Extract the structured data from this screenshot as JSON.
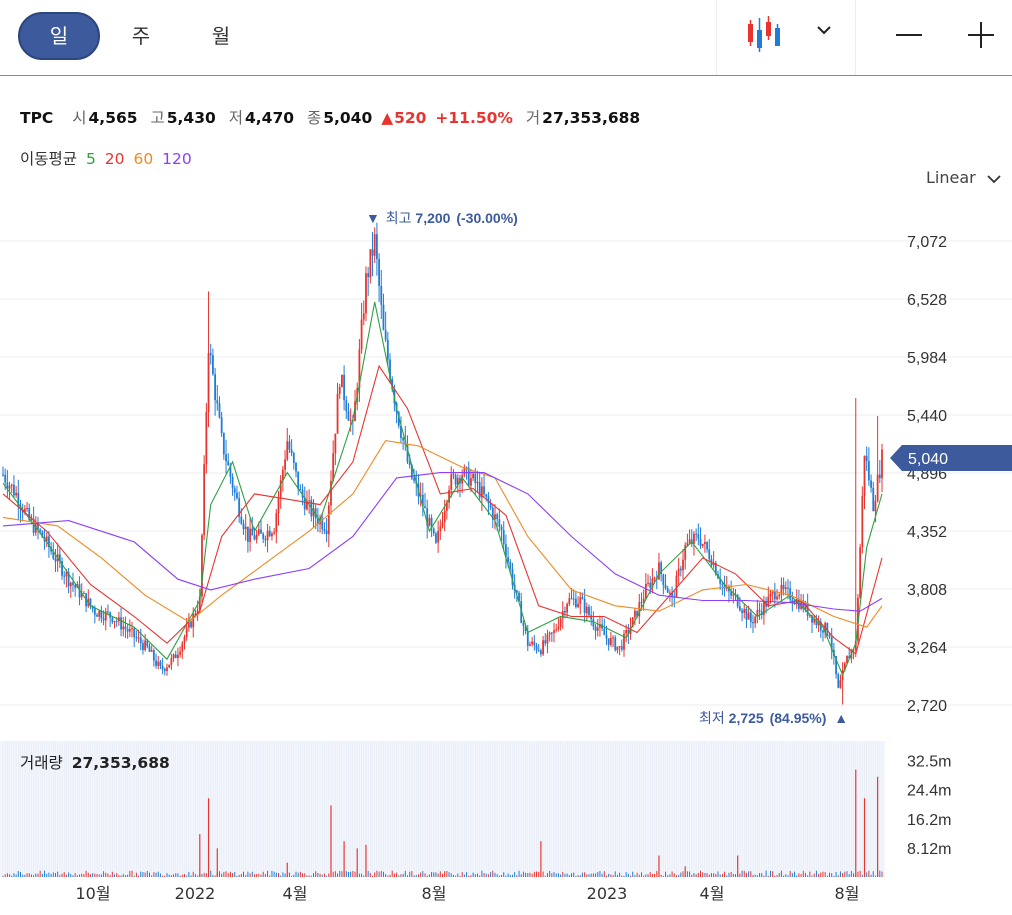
{
  "toolbar": {
    "periods": [
      {
        "label": "일",
        "active": true
      },
      {
        "label": "주",
        "active": false
      },
      {
        "label": "월",
        "active": false
      }
    ],
    "chart_type_icon": "candlestick-icon",
    "dropdown_icon": "chevron-down-icon",
    "zoom_out_icon": "minus-icon",
    "zoom_in_icon": "plus-icon"
  },
  "quote": {
    "symbol": "TPC",
    "open_label": "시",
    "open": "4,565",
    "high_label": "고",
    "high": "5,430",
    "low_label": "저",
    "low": "4,470",
    "close_label": "종",
    "close": "5,040",
    "change_mark": "▲",
    "change": "520",
    "change_pct": "+11.50%",
    "volume_label": "거",
    "volume": "27,353,688"
  },
  "moving_average": {
    "label": "이동평균",
    "periods": [
      {
        "label": "5",
        "color": "#2ea043"
      },
      {
        "label": "20",
        "color": "#e8342f"
      },
      {
        "label": "60",
        "color": "#f08a24"
      },
      {
        "label": "120",
        "color": "#8a3ffc"
      }
    ]
  },
  "scale": {
    "label": "Linear",
    "icon": "chevron-down-icon"
  },
  "annotations": {
    "high": {
      "mark": "▼",
      "label": "최고",
      "value": "7,200",
      "pct": "(-30.00%)"
    },
    "low": {
      "label": "최저",
      "value": "2,725",
      "pct": "(84.95%)",
      "mark": "▲"
    }
  },
  "current_price_tag": "5,040",
  "volume_panel": {
    "label": "거래량",
    "value": "27,353,688"
  },
  "colors": {
    "up": "#e8342f",
    "down": "#1f7dd6",
    "accent": "#3d5a9c",
    "annotation": "#3d5a9c"
  },
  "chart_data": {
    "type": "candlestick",
    "y_ticks": [
      "7,072",
      "6,528",
      "5,984",
      "5,440",
      "4,896",
      "4,352",
      "3,808",
      "3,264",
      "2,720"
    ],
    "y_tick_values": [
      7072,
      6528,
      5984,
      5440,
      4896,
      4352,
      3808,
      3264,
      2720
    ],
    "ylim": [
      2600,
      7250
    ],
    "x_ticks": [
      "10월",
      "2022",
      "4월",
      "8월",
      "2023",
      "4월",
      "8월"
    ],
    "volume_ticks": [
      "32.5m",
      "24.4m",
      "16.2m",
      "8.12m"
    ],
    "volume_tick_values": [
      32.5,
      24.4,
      16.2,
      8.12
    ],
    "volume_ylim": [
      0,
      38
    ],
    "price_path": [
      [
        0,
        4880
      ],
      [
        6,
        4700
      ],
      [
        12,
        4450
      ],
      [
        18,
        4300
      ],
      [
        24,
        4100
      ],
      [
        30,
        3900
      ],
      [
        36,
        3750
      ],
      [
        42,
        3600
      ],
      [
        50,
        3550
      ],
      [
        58,
        3400
      ],
      [
        66,
        3250
      ],
      [
        72,
        3050
      ],
      [
        78,
        3150
      ],
      [
        84,
        3400
      ],
      [
        90,
        3700
      ],
      [
        94,
        6100
      ],
      [
        100,
        5200
      ],
      [
        106,
        4700
      ],
      [
        112,
        4300
      ],
      [
        118,
        4300
      ],
      [
        124,
        4400
      ],
      [
        130,
        5200
      ],
      [
        136,
        4700
      ],
      [
        142,
        4500
      ],
      [
        148,
        4400
      ],
      [
        154,
        5800
      ],
      [
        160,
        5300
      ],
      [
        166,
        6700
      ],
      [
        170,
        7072
      ],
      [
        174,
        6200
      ],
      [
        180,
        5500
      ],
      [
        186,
        4900
      ],
      [
        192,
        4600
      ],
      [
        198,
        4200
      ],
      [
        204,
        4800
      ],
      [
        210,
        4900
      ],
      [
        216,
        4800
      ],
      [
        222,
        4600
      ],
      [
        228,
        4350
      ],
      [
        234,
        3800
      ],
      [
        240,
        3300
      ],
      [
        246,
        3250
      ],
      [
        252,
        3400
      ],
      [
        258,
        3700
      ],
      [
        264,
        3700
      ],
      [
        270,
        3500
      ],
      [
        276,
        3350
      ],
      [
        282,
        3250
      ],
      [
        288,
        3500
      ],
      [
        294,
        3800
      ],
      [
        300,
        4000
      ],
      [
        306,
        3700
      ],
      [
        312,
        4200
      ],
      [
        318,
        4300
      ],
      [
        324,
        4100
      ],
      [
        330,
        3800
      ],
      [
        336,
        3700
      ],
      [
        342,
        3500
      ],
      [
        348,
        3650
      ],
      [
        354,
        3800
      ],
      [
        360,
        3750
      ],
      [
        366,
        3650
      ],
      [
        372,
        3500
      ],
      [
        378,
        3400
      ],
      [
        382,
        2850
      ],
      [
        386,
        3150
      ],
      [
        390,
        3300
      ],
      [
        394,
        5100
      ],
      [
        398,
        4600
      ],
      [
        402,
        5040
      ]
    ],
    "ma5": [
      [
        0,
        4800
      ],
      [
        20,
        4250
      ],
      [
        40,
        3650
      ],
      [
        60,
        3450
      ],
      [
        75,
        3150
      ],
      [
        90,
        3700
      ],
      [
        95,
        4600
      ],
      [
        105,
        5000
      ],
      [
        115,
        4350
      ],
      [
        130,
        4900
      ],
      [
        145,
        4450
      ],
      [
        160,
        5400
      ],
      [
        170,
        6500
      ],
      [
        180,
        5500
      ],
      [
        195,
        4350
      ],
      [
        210,
        4850
      ],
      [
        225,
        4450
      ],
      [
        240,
        3400
      ],
      [
        255,
        3550
      ],
      [
        270,
        3500
      ],
      [
        285,
        3350
      ],
      [
        300,
        3950
      ],
      [
        315,
        4250
      ],
      [
        330,
        3850
      ],
      [
        345,
        3550
      ],
      [
        360,
        3750
      ],
      [
        375,
        3450
      ],
      [
        384,
        3000
      ],
      [
        390,
        3300
      ],
      [
        395,
        4200
      ],
      [
        402,
        4700
      ]
    ],
    "ma20": [
      [
        0,
        4700
      ],
      [
        20,
        4350
      ],
      [
        40,
        3850
      ],
      [
        60,
        3550
      ],
      [
        75,
        3300
      ],
      [
        90,
        3600
      ],
      [
        100,
        4300
      ],
      [
        115,
        4700
      ],
      [
        130,
        4650
      ],
      [
        145,
        4600
      ],
      [
        160,
        5000
      ],
      [
        172,
        5900
      ],
      [
        185,
        5500
      ],
      [
        200,
        4700
      ],
      [
        215,
        4750
      ],
      [
        230,
        4500
      ],
      [
        245,
        3650
      ],
      [
        260,
        3550
      ],
      [
        275,
        3550
      ],
      [
        290,
        3400
      ],
      [
        305,
        3750
      ],
      [
        320,
        4100
      ],
      [
        335,
        3950
      ],
      [
        350,
        3650
      ],
      [
        365,
        3700
      ],
      [
        380,
        3350
      ],
      [
        390,
        3200
      ],
      [
        402,
        4100
      ]
    ],
    "ma60": [
      [
        0,
        4480
      ],
      [
        25,
        4400
      ],
      [
        45,
        4100
      ],
      [
        65,
        3750
      ],
      [
        85,
        3500
      ],
      [
        100,
        3750
      ],
      [
        120,
        4050
      ],
      [
        140,
        4350
      ],
      [
        160,
        4700
      ],
      [
        175,
        5200
      ],
      [
        190,
        5150
      ],
      [
        210,
        4950
      ],
      [
        225,
        4850
      ],
      [
        240,
        4300
      ],
      [
        260,
        3800
      ],
      [
        280,
        3650
      ],
      [
        300,
        3600
      ],
      [
        320,
        3800
      ],
      [
        340,
        3850
      ],
      [
        360,
        3750
      ],
      [
        380,
        3550
      ],
      [
        395,
        3450
      ],
      [
        402,
        3650
      ]
    ],
    "ma120": [
      [
        0,
        4400
      ],
      [
        30,
        4450
      ],
      [
        60,
        4250
      ],
      [
        80,
        3900
      ],
      [
        95,
        3800
      ],
      [
        115,
        3900
      ],
      [
        140,
        4000
      ],
      [
        160,
        4300
      ],
      [
        180,
        4850
      ],
      [
        200,
        4900
      ],
      [
        220,
        4900
      ],
      [
        240,
        4700
      ],
      [
        260,
        4300
      ],
      [
        280,
        3950
      ],
      [
        300,
        3750
      ],
      [
        320,
        3700
      ],
      [
        340,
        3700
      ],
      [
        360,
        3680
      ],
      [
        380,
        3620
      ],
      [
        392,
        3600
      ],
      [
        402,
        3720
      ]
    ],
    "volume_spikes": [
      [
        90,
        12
      ],
      [
        94,
        22
      ],
      [
        98,
        8
      ],
      [
        130,
        4
      ],
      [
        150,
        20
      ],
      [
        156,
        10
      ],
      [
        162,
        8
      ],
      [
        166,
        9
      ],
      [
        246,
        10
      ],
      [
        300,
        6
      ],
      [
        312,
        3
      ],
      [
        336,
        6
      ],
      [
        390,
        30
      ],
      [
        394,
        22
      ],
      [
        400,
        28
      ]
    ]
  }
}
